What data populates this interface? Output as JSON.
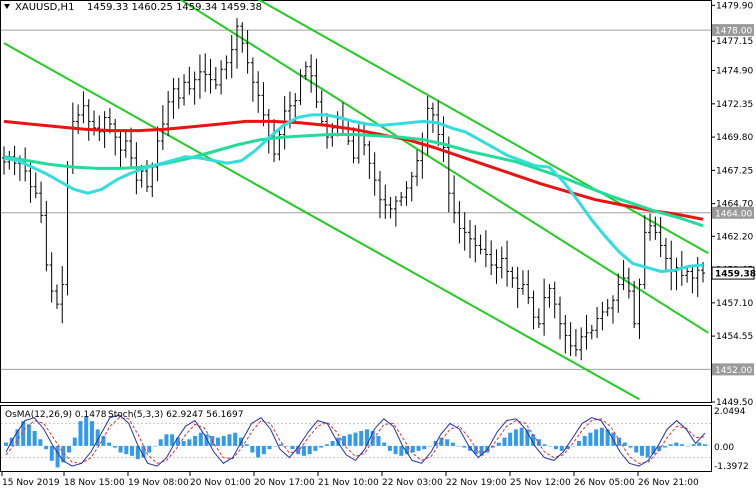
{
  "header": {
    "symbol": "XAUUSD,H1",
    "ohlc": "1459.33 1460.25 1459.34 1459.38"
  },
  "indicator": {
    "label": "OsMA(12,26,9) 0.1478",
    "stoch_label": "Stoch(5,3,3) 62.9247 56.1697",
    "scale": [
      "2.0494",
      "0.00",
      "-1.3972"
    ]
  },
  "colors": {
    "price_bars": "#000000",
    "ema_fast": "#33dddd",
    "ema_mid": "#22dd99",
    "ema_slow": "#ee1111",
    "channel": "#22cc22",
    "osma": "#3399ee",
    "stoch_main": "#2233aa",
    "stoch_signal": "#dd3333"
  },
  "chart_data": {
    "type": "candlestick",
    "ylim": [
      1449.5,
      1480.0
    ],
    "y_ticks": [
      "1479.90",
      "1477.15",
      "1474.90",
      "1472.35",
      "1469.80",
      "1467.25",
      "1464.70",
      "1462.20",
      "1459.65",
      "1457.10",
      "1454.55",
      "1452.00",
      "1449.50"
    ],
    "price_tags": [
      {
        "label": "1478.00",
        "value": 1478.0,
        "style": "grey"
      },
      {
        "label": "1464.00",
        "value": 1464.0,
        "style": "grey"
      },
      {
        "label": "1459.38",
        "value": 1459.38,
        "style": "current"
      },
      {
        "label": "1452.00",
        "value": 1452.0,
        "style": "grey"
      }
    ],
    "horizontal_levels": [
      1478.0,
      1464.0,
      1452.0
    ],
    "x_labels": [
      "15 Nov 2019",
      "18 Nov 15:00",
      "19 Nov 08:00",
      "20 Nov 01:00",
      "20 Nov 17:00",
      "21 Nov 10:00",
      "22 Nov 03:00",
      "22 Nov 19:00",
      "25 Nov 12:00",
      "26 Nov 05:00",
      "26 Nov 21:00"
    ],
    "close": [
      1467.9,
      1468.3,
      1467.8,
      1468.0,
      1467.2,
      1466.0,
      1465.5,
      1463.8,
      1460.0,
      1458.0,
      1457.0,
      1458.5,
      1467.5,
      1471.0,
      1471.5,
      1472.2,
      1471.0,
      1470.5,
      1470.2,
      1471.3,
      1470.8,
      1469.8,
      1468.8,
      1469.5,
      1468.2,
      1466.5,
      1467.2,
      1466.0,
      1467.5,
      1469.5,
      1470.8,
      1472.5,
      1473.5,
      1472.8,
      1474.0,
      1473.5,
      1474.2,
      1474.8,
      1474.6,
      1474.2,
      1473.8,
      1475.0,
      1475.5,
      1476.5,
      1478.3,
      1477.0,
      1475.5,
      1474.0,
      1473.0,
      1471.5,
      1469.8,
      1468.5,
      1470.0,
      1471.8,
      1472.2,
      1472.6,
      1474.5,
      1475.2,
      1474.5,
      1472.5,
      1471.0,
      1469.8,
      1470.5,
      1471.2,
      1470.5,
      1469.5,
      1468.2,
      1470.0,
      1469.2,
      1467.8,
      1466.5,
      1465.0,
      1464.6,
      1464.3,
      1464.9,
      1465.2,
      1465.9,
      1466.8,
      1468.0,
      1469.2,
      1472.0,
      1471.5,
      1470.0,
      1469.0,
      1465.5,
      1464.0,
      1462.8,
      1462.5,
      1462.0,
      1461.5,
      1461.2,
      1460.8,
      1460.0,
      1459.8,
      1460.5,
      1459.5,
      1459.0,
      1458.2,
      1458.5,
      1457.5,
      1456.0,
      1455.5,
      1457.5,
      1458.2,
      1457.0,
      1455.5,
      1454.6,
      1453.8,
      1453.5,
      1454.5,
      1454.8,
      1455.0,
      1455.9,
      1456.4,
      1456.7,
      1457.3,
      1458.5,
      1459.0,
      1458.0,
      1455.5,
      1458.5,
      1462.5,
      1463.0,
      1462.5,
      1461.5,
      1460.5,
      1459.5,
      1459.8,
      1459.2,
      1459.5,
      1459.0,
      1459.6,
      1459.38
    ],
    "ema_fast": [
      1468.2,
      1468.0,
      1467.5,
      1467.0,
      1466.4,
      1465.8,
      1465.5,
      1465.8,
      1466.5,
      1467.0,
      1467.4,
      1467.7,
      1468.0,
      1468.3,
      1468.2,
      1468.0,
      1467.8,
      1468.0,
      1468.8,
      1469.8,
      1470.7,
      1471.3,
      1471.5,
      1471.5,
      1471.3,
      1471.0,
      1470.8,
      1470.7,
      1470.8,
      1470.9,
      1471.0,
      1470.9,
      1470.5,
      1470.2,
      1469.6,
      1469.0,
      1468.4,
      1468.0,
      1467.6,
      1467.5,
      1466.4,
      1465.0,
      1463.5,
      1462.2,
      1461.0,
      1460.1,
      1459.8,
      1459.5,
      1459.6,
      1459.9,
      1460.0
    ],
    "ema_mid": [
      1468.3,
      1468.0,
      1467.7,
      1467.5,
      1467.4,
      1467.4,
      1467.5,
      1467.8,
      1468.2,
      1468.7,
      1469.2,
      1469.6,
      1469.8,
      1469.9,
      1470.0,
      1470.0,
      1469.9,
      1469.8,
      1469.6,
      1469.2,
      1468.7,
      1468.3,
      1467.9,
      1467.3,
      1466.7,
      1466.0,
      1465.3,
      1464.7,
      1464.1,
      1463.6,
      1463.0
    ],
    "ema_slow": [
      1471.0,
      1470.8,
      1470.6,
      1470.4,
      1470.3,
      1470.3,
      1470.4,
      1470.6,
      1470.8,
      1471.0,
      1471.0,
      1470.9,
      1470.7,
      1470.4,
      1470.0,
      1469.6,
      1469.0,
      1468.3,
      1467.6,
      1466.9,
      1466.2,
      1465.6,
      1465.0,
      1464.6,
      1464.2,
      1463.9,
      1463.5
    ],
    "channel_lines": [
      {
        "from": [
          0,
          1477.0
        ],
        "to": [
          120,
          1449.7
        ]
      },
      {
        "from": [
          43,
          1481.5
        ],
        "to": [
          133,
          1460.9
        ]
      },
      {
        "from": [
          21,
          1483.5
        ],
        "to": [
          133,
          1454.8
        ]
      }
    ],
    "osma": [
      0.2,
      0.5,
      1.0,
      1.5,
      1.3,
      0.9,
      0.4,
      -0.2,
      -0.9,
      -1.3,
      -1.0,
      -0.4,
      0.5,
      1.5,
      1.8,
      1.5,
      1.0,
      0.6,
      0.2,
      -0.1,
      -0.4,
      -0.5,
      -0.6,
      -0.8,
      -0.7,
      -0.4,
      0.0,
      0.4,
      0.7,
      0.7,
      0.5,
      0.3,
      0.4,
      0.6,
      0.8,
      0.7,
      0.6,
      0.5,
      0.6,
      0.7,
      0.8,
      0.5,
      0.1,
      -0.4,
      -0.7,
      -0.5,
      -0.2,
      0.0,
      0.1,
      0.0,
      -0.2,
      -0.5,
      -0.6,
      -0.5,
      -0.3,
      -0.1,
      0.1,
      0.3,
      0.5,
      0.6,
      0.7,
      0.8,
      0.9,
      1.0,
      0.9,
      0.6,
      0.2,
      -0.3,
      -0.5,
      -0.6,
      -0.5,
      -0.4,
      -0.3,
      -0.2,
      0.0,
      0.3,
      0.5,
      0.4,
      0.2,
      0.0,
      -0.1,
      -0.3,
      -0.5,
      -0.6,
      -0.4,
      -0.1,
      0.2,
      0.5,
      0.8,
      1.0,
      1.1,
      1.0,
      0.7,
      0.4,
      0.1,
      0.0,
      -0.2,
      -0.3,
      -0.2,
      0.0,
      0.3,
      0.6,
      0.8,
      1.0,
      1.1,
      1.0,
      0.8,
      0.5,
      0.2,
      -0.1,
      -0.4,
      -0.6,
      -0.7,
      -0.5,
      -0.3,
      -0.1,
      0.1,
      0.2,
      0.1,
      0.0,
      0.1,
      0.2,
      0.1
    ],
    "stoch_main": [
      30,
      60,
      85,
      90,
      70,
      40,
      15,
      5,
      10,
      30,
      60,
      90,
      95,
      80,
      40,
      10,
      5,
      20,
      50,
      75,
      85,
      60,
      30,
      10,
      20,
      50,
      80,
      90,
      70,
      35,
      20,
      40,
      65,
      85,
      80,
      50,
      25,
      15,
      35,
      70,
      88,
      75,
      40,
      15,
      10,
      30,
      60,
      80,
      70,
      40,
      20,
      35,
      65,
      85,
      88,
      70,
      40,
      20,
      15,
      30,
      55,
      80,
      90,
      85,
      60,
      30,
      10,
      5,
      15,
      40,
      70,
      85,
      70,
      45,
      62.9
    ],
    "stoch_signal": [
      25,
      45,
      70,
      85,
      80,
      55,
      30,
      12,
      10,
      20,
      45,
      75,
      90,
      88,
      60,
      25,
      10,
      15,
      35,
      60,
      78,
      72,
      45,
      20,
      18,
      38,
      65,
      85,
      80,
      50,
      28,
      32,
      55,
      75,
      82,
      65,
      38,
      22,
      28,
      55,
      78,
      80,
      55,
      28,
      15,
      22,
      48,
      70,
      75,
      55,
      30,
      30,
      52,
      75,
      85,
      80,
      55,
      30,
      20,
      25,
      45,
      68,
      85,
      88,
      75,
      48,
      22,
      10,
      12,
      30,
      55,
      75,
      72,
      55,
      56.2
    ]
  }
}
